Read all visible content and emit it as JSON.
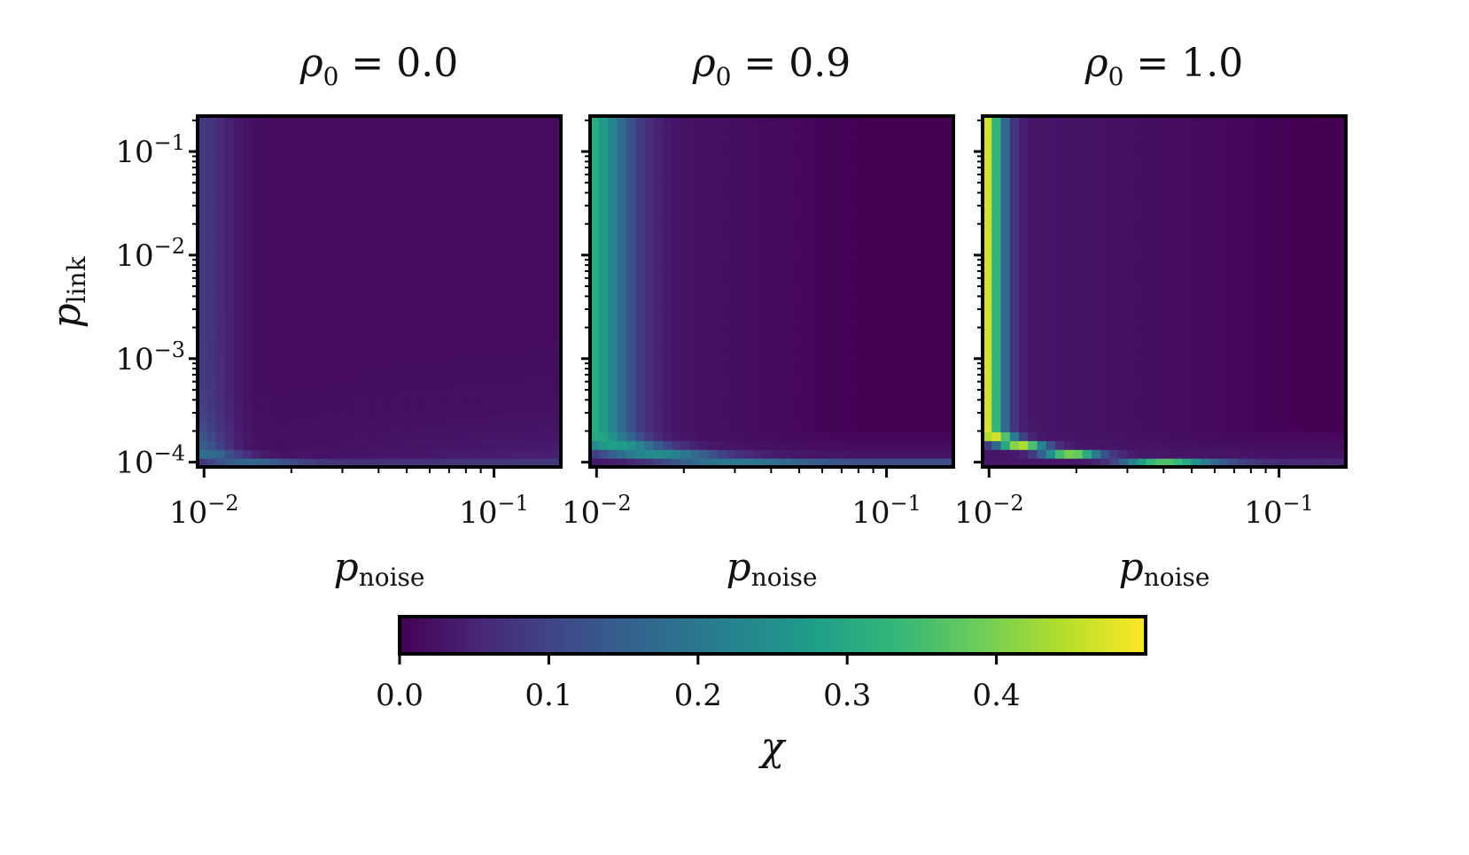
{
  "chart_data": {
    "type": "heatmap",
    "panels": [
      {
        "param_symbol": "ρ",
        "param_subscript": "0",
        "param_value": "0.0",
        "rho0": 0.0
      },
      {
        "param_symbol": "ρ",
        "param_subscript": "0",
        "param_value": "0.9",
        "rho0": 0.9
      },
      {
        "param_symbol": "ρ",
        "param_subscript": "0",
        "param_value": "1.0",
        "rho0": 1.0
      }
    ],
    "xlabel": {
      "symbol": "p",
      "subscript": "noise"
    },
    "ylabel": {
      "symbol": "p",
      "subscript": "link"
    },
    "x_scale": "log",
    "y_scale": "log",
    "xlim": [
      0.0095,
      0.17
    ],
    "ylim": [
      9e-05,
      0.22
    ],
    "x_ticks": [
      {
        "value": 0.01,
        "base": "10",
        "exp": "−2"
      },
      {
        "value": 0.1,
        "base": "10",
        "exp": "−1"
      }
    ],
    "y_ticks": [
      {
        "value": 0.1,
        "base": "10",
        "exp": "−1"
      },
      {
        "value": 0.01,
        "base": "10",
        "exp": "−2"
      },
      {
        "value": 0.001,
        "base": "10",
        "exp": "−3"
      },
      {
        "value": 0.0001,
        "base": "10",
        "exp": "−4"
      }
    ],
    "grid_size": [
      40,
      40
    ],
    "colorbar": {
      "label": "χ",
      "colormap": "viridis",
      "range": [
        0.0,
        0.5
      ],
      "ticks": [
        {
          "value": 0.0,
          "label": "0.0"
        },
        {
          "value": 0.1,
          "label": "0.1"
        },
        {
          "value": 0.2,
          "label": "0.2"
        },
        {
          "value": 0.3,
          "label": "0.3"
        },
        {
          "value": 0.4,
          "label": "0.4"
        }
      ]
    }
  }
}
